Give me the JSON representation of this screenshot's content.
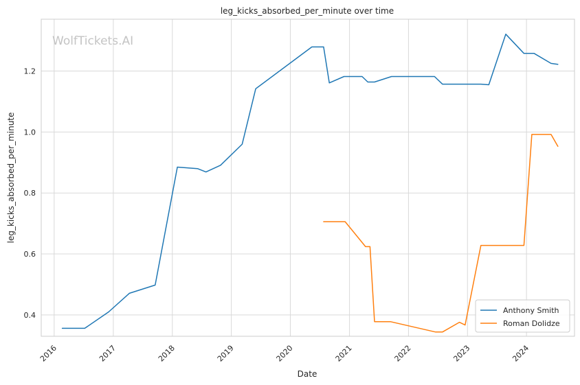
{
  "chart_data": {
    "type": "line",
    "title": "leg_kicks_absorbed_per_minute over time",
    "xlabel": "Date",
    "ylabel": "leg_kicks_absorbed_per_minute",
    "watermark": "WolfTickets.AI",
    "x_tick_labels": [
      "2016",
      "2017",
      "2018",
      "2019",
      "2020",
      "2021",
      "2022",
      "2023",
      "2024"
    ],
    "y_tick_labels": [
      "0.4",
      "0.6",
      "0.8",
      "1.0",
      "1.2"
    ],
    "y_ticks": [
      0.4,
      0.6,
      0.8,
      1.0,
      1.2
    ],
    "xlim": [
      "2015-10-13",
      "2024-10-24"
    ],
    "ylim": [
      0.33,
      1.37
    ],
    "grid": true,
    "legend_position": "lower-right",
    "colors": {
      "Anthony Smith": "#1f77b4",
      "Roman Dolidze": "#ff7f0e"
    },
    "series": [
      {
        "name": "Anthony Smith",
        "x": [
          "2016-02-20",
          "2016-07-08",
          "2016-12-03",
          "2017-04-10",
          "2017-09-17",
          "2018-02-01",
          "2018-06-06",
          "2018-07-28",
          "2018-10-26",
          "2019-03-09",
          "2019-06-01",
          "2020-05-13",
          "2020-07-25",
          "2020-08-29",
          "2020-11-28",
          "2021-03-20",
          "2021-04-24",
          "2021-06-05",
          "2021-09-18",
          "2022-06-11",
          "2022-07-30",
          "2023-03-25",
          "2023-05-13",
          "2023-08-26",
          "2023-12-16",
          "2024-02-17",
          "2024-06-01",
          "2024-07-13"
        ],
        "values": [
          0.356,
          0.356,
          0.41,
          0.471,
          0.498,
          0.885,
          0.88,
          0.869,
          0.891,
          0.96,
          1.142,
          1.279,
          1.279,
          1.161,
          1.182,
          1.182,
          1.164,
          1.164,
          1.182,
          1.182,
          1.157,
          1.157,
          1.155,
          1.321,
          1.258,
          1.258,
          1.225,
          1.222
        ]
      },
      {
        "name": "Roman Dolidze",
        "x": [
          "2020-07-25",
          "2020-12-05",
          "2021-04-10",
          "2021-05-08",
          "2021-06-05",
          "2021-09-11",
          "2022-06-18",
          "2022-07-30",
          "2022-11-12",
          "2022-12-17",
          "2023-03-25",
          "2023-12-16",
          "2024-02-03",
          "2024-06-01",
          "2024-07-13"
        ],
        "values": [
          0.706,
          0.706,
          0.624,
          0.624,
          0.378,
          0.378,
          0.344,
          0.344,
          0.376,
          0.367,
          0.628,
          0.628,
          0.992,
          0.992,
          0.953
        ]
      }
    ]
  }
}
